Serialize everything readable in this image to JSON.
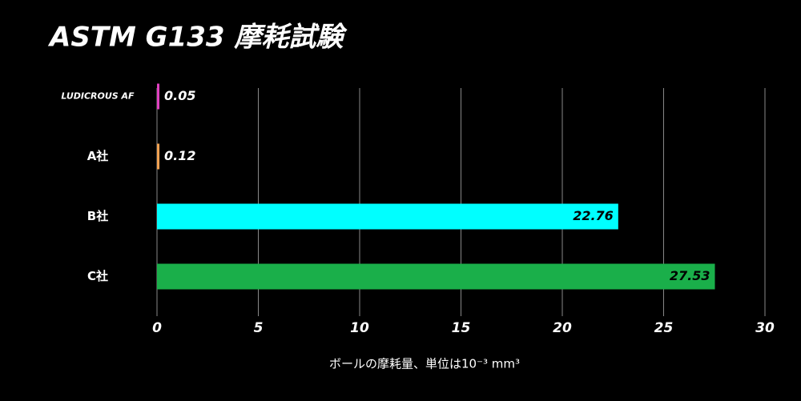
{
  "chart_data": {
    "type": "hbar",
    "title": "ASTM G133 摩耗試験",
    "categories": [
      "LUDICROUS AF",
      "A社",
      "B社",
      "C社"
    ],
    "values": [
      0.05,
      0.12,
      22.76,
      27.53
    ],
    "colors": [
      "#e040c0",
      "#f0a050",
      "#00ffff",
      "#1aaf4a"
    ],
    "x_label": "ボールの摩耗量、単位は10⁻³ mm³",
    "xlim": [
      0,
      30
    ],
    "xticks": [
      0,
      5,
      10,
      15,
      20,
      25,
      30
    ],
    "grid": true
  }
}
